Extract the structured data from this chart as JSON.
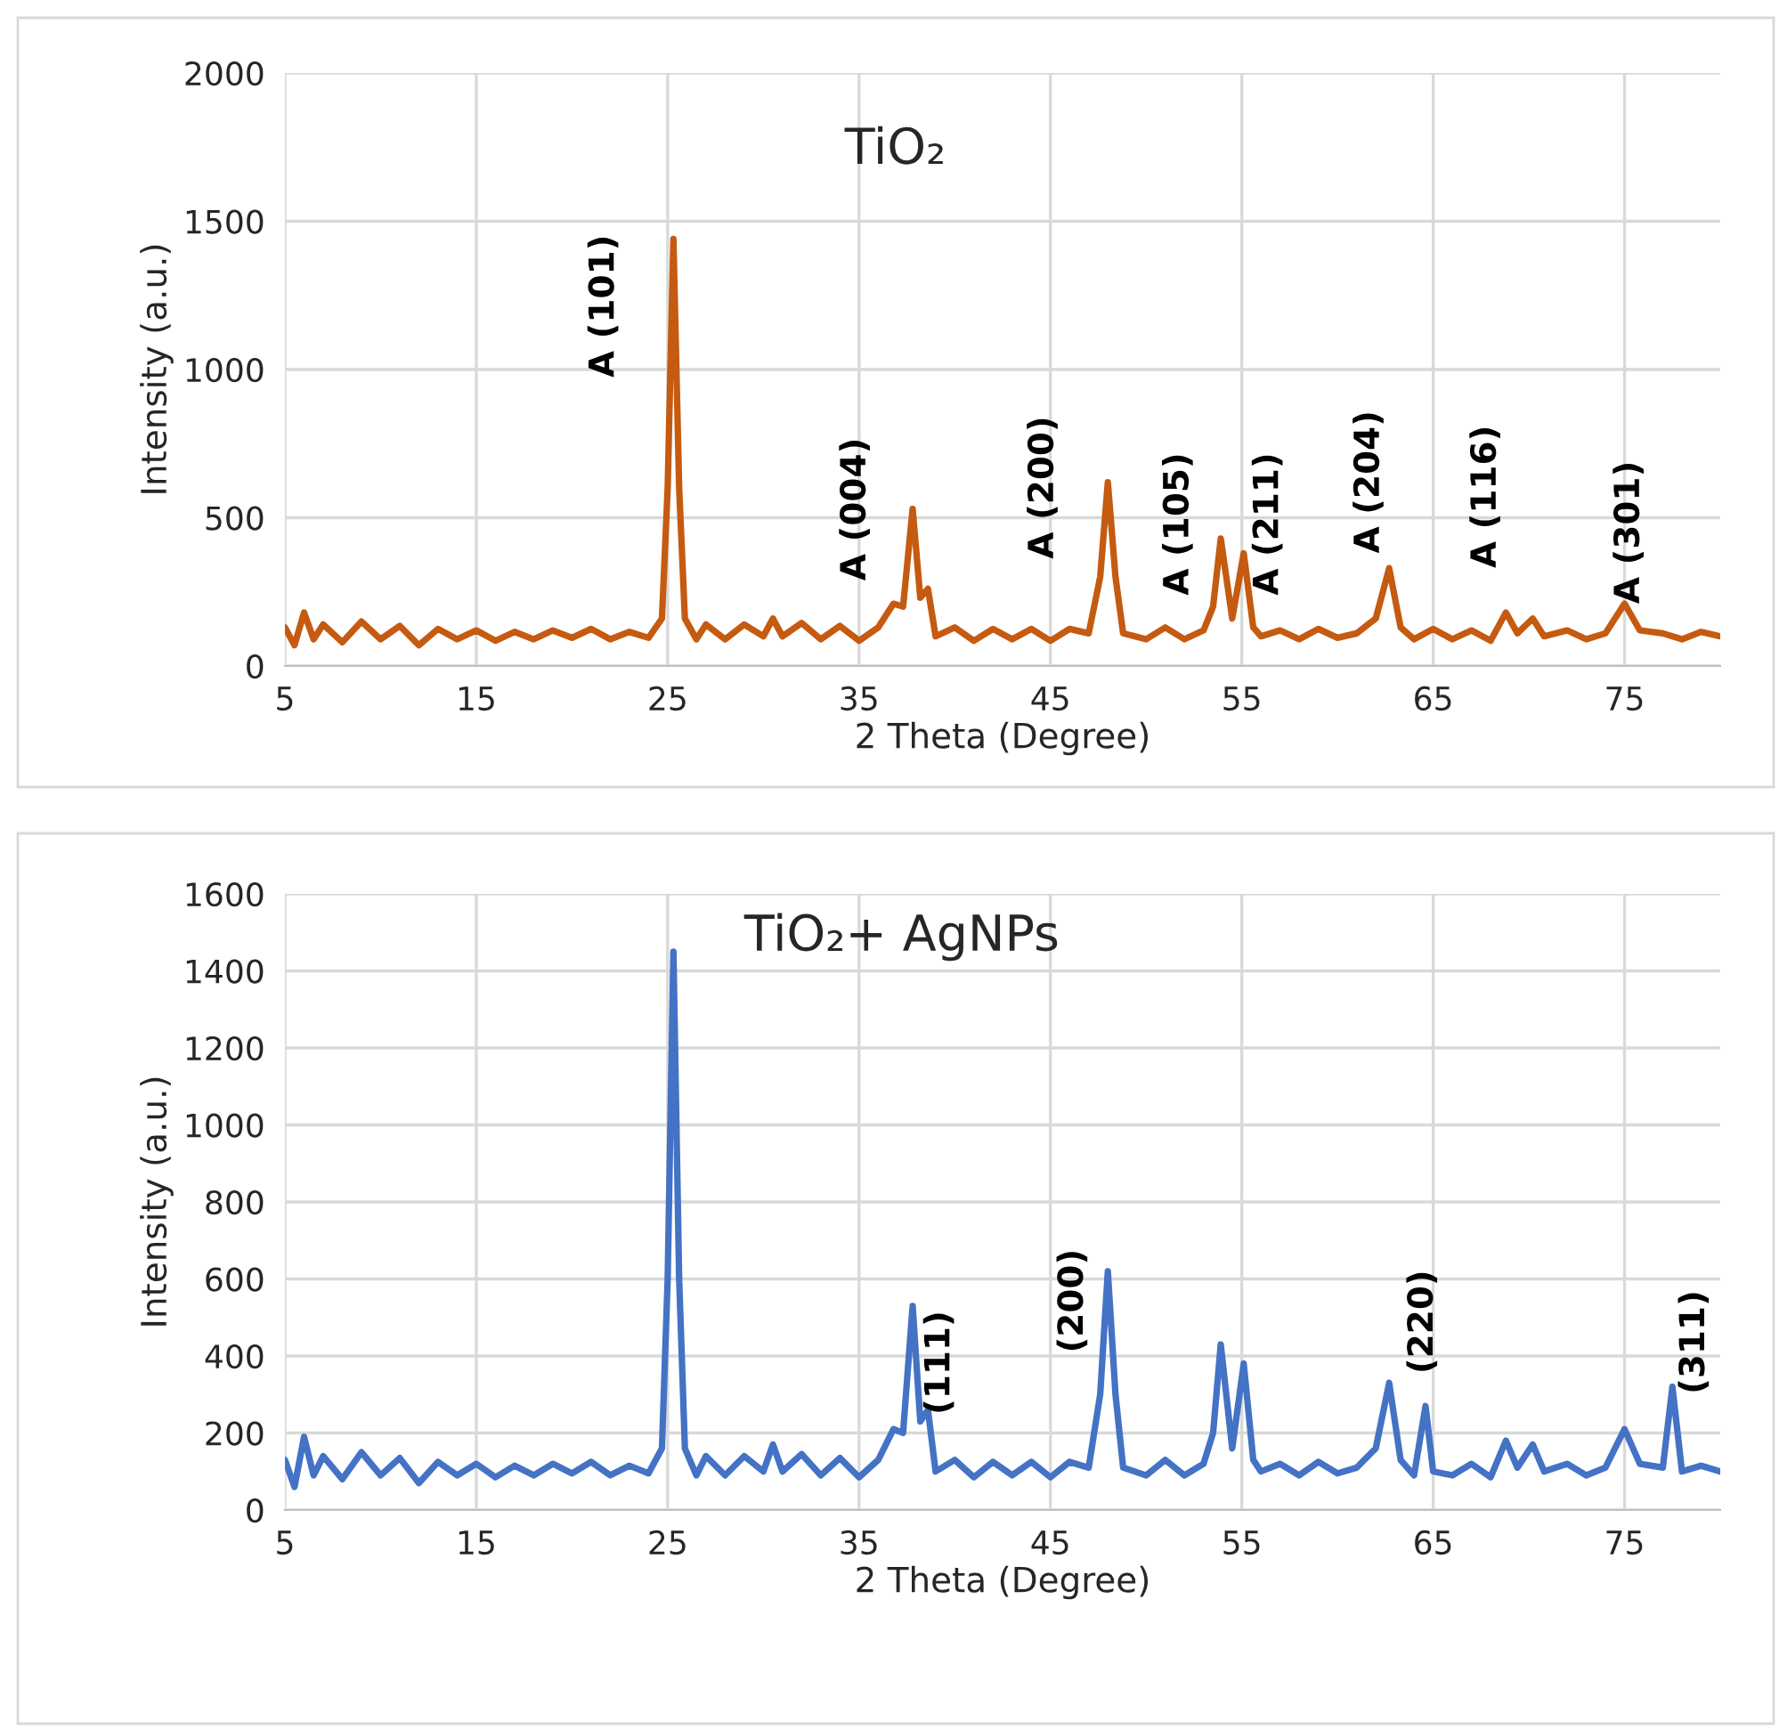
{
  "chart_data": [
    {
      "type": "line",
      "title": "TiO₂",
      "xlabel": "2 Theta (Degree)",
      "ylabel": "Intensity (a.u.)",
      "xlim": [
        5,
        80
      ],
      "xticks": [
        5,
        15,
        25,
        35,
        45,
        55,
        65,
        75
      ],
      "ylim": [
        0,
        2000
      ],
      "yticks": [
        0,
        500,
        1000,
        1500,
        2000
      ],
      "grid": true,
      "series": [
        {
          "color": "#c55a11",
          "x": [
            5,
            5.5,
            6,
            6.5,
            7,
            8,
            9,
            10,
            11,
            12,
            13,
            14,
            15,
            16,
            17,
            18,
            19,
            20,
            21,
            22,
            23,
            24,
            24.7,
            25.0,
            25.3,
            25.6,
            25.9,
            26.5,
            27,
            28,
            29,
            30,
            30.5,
            31,
            32,
            33,
            34,
            35,
            36,
            36.8,
            37.3,
            37.8,
            38.2,
            38.6,
            39,
            40,
            41,
            42,
            43,
            44,
            45,
            46,
            47,
            47.6,
            48.0,
            48.4,
            48.8,
            50,
            51,
            52,
            53,
            53.5,
            53.9,
            54.5,
            55.1,
            55.6,
            56,
            57,
            58,
            59,
            60,
            61,
            62,
            62.7,
            63.3,
            64,
            65,
            66,
            67,
            68,
            68.8,
            69.4,
            70.2,
            70.8,
            72,
            73,
            74,
            75,
            75.8,
            77,
            78,
            79,
            80
          ],
          "values": [
            130,
            70,
            180,
            90,
            140,
            80,
            150,
            90,
            135,
            70,
            125,
            90,
            120,
            85,
            115,
            90,
            120,
            95,
            125,
            90,
            115,
            95,
            160,
            600,
            1440,
            600,
            160,
            90,
            140,
            90,
            140,
            100,
            160,
            100,
            145,
            90,
            135,
            85,
            130,
            210,
            200,
            530,
            230,
            260,
            100,
            130,
            85,
            125,
            90,
            125,
            85,
            125,
            110,
            300,
            620,
            300,
            110,
            90,
            130,
            90,
            120,
            200,
            430,
            160,
            380,
            130,
            100,
            120,
            90,
            125,
            95,
            110,
            160,
            330,
            130,
            90,
            125,
            90,
            120,
            85,
            180,
            110,
            160,
            100,
            120,
            90,
            110,
            210,
            120,
            110,
            90,
            115,
            100
          ]
        }
      ],
      "annotations": [
        {
          "text": "A (101)",
          "x": 25.3,
          "y": 1440
        },
        {
          "text": "A (004)",
          "x": 37.8,
          "y": 530
        },
        {
          "text": "A (200)",
          "x": 48.0,
          "y": 620
        },
        {
          "text": "A (105)",
          "x": 53.9,
          "y": 430
        },
        {
          "text": "A (211)",
          "x": 55.1,
          "y": 380
        },
        {
          "text": "A (204)",
          "x": 62.7,
          "y": 330
        },
        {
          "text": "A (116)",
          "x": 68.8,
          "y": 180
        },
        {
          "text": "A (301)",
          "x": 75.0,
          "y": 210
        }
      ]
    },
    {
      "type": "line",
      "title": "TiO₂+ AgNPs",
      "xlabel": "2 Theta (Degree)",
      "ylabel": "Intensity (a.u.)",
      "xlim": [
        5,
        80
      ],
      "xticks": [
        5,
        15,
        25,
        35,
        45,
        55,
        65,
        75
      ],
      "ylim": [
        0,
        1600
      ],
      "yticks": [
        0,
        200,
        400,
        600,
        800,
        1000,
        1200,
        1400,
        1600
      ],
      "grid": true,
      "series": [
        {
          "color": "#4472c4",
          "x": [
            5,
            5.5,
            6,
            6.5,
            7,
            8,
            9,
            10,
            11,
            12,
            13,
            14,
            15,
            16,
            17,
            18,
            19,
            20,
            21,
            22,
            23,
            24,
            24.7,
            25.0,
            25.3,
            25.6,
            25.9,
            26.5,
            27,
            28,
            29,
            30,
            30.5,
            31,
            32,
            33,
            34,
            35,
            36,
            36.8,
            37.3,
            37.8,
            38.2,
            38.6,
            39,
            40,
            41,
            42,
            43,
            44,
            45,
            46,
            47,
            47.6,
            48.0,
            48.4,
            48.8,
            50,
            51,
            52,
            53,
            53.5,
            53.9,
            54.5,
            55.1,
            55.6,
            56,
            57,
            58,
            59,
            60,
            61,
            62,
            62.7,
            63.3,
            64,
            64.6,
            65,
            66,
            67,
            68,
            68.8,
            69.4,
            70.2,
            70.8,
            72,
            73,
            74,
            75,
            75.8,
            77,
            77.5,
            78,
            79,
            80
          ],
          "values": [
            130,
            60,
            190,
            90,
            140,
            80,
            150,
            90,
            135,
            70,
            125,
            90,
            120,
            85,
            115,
            90,
            120,
            95,
            125,
            90,
            115,
            95,
            160,
            600,
            1450,
            600,
            160,
            90,
            140,
            90,
            140,
            100,
            170,
            100,
            145,
            90,
            135,
            85,
            130,
            210,
            200,
            530,
            230,
            260,
            100,
            130,
            85,
            125,
            90,
            125,
            85,
            125,
            110,
            300,
            620,
            300,
            110,
            90,
            130,
            90,
            120,
            200,
            430,
            160,
            380,
            130,
            100,
            120,
            90,
            125,
            95,
            110,
            160,
            330,
            130,
            90,
            270,
            100,
            90,
            120,
            85,
            180,
            110,
            170,
            100,
            120,
            90,
            110,
            210,
            120,
            110,
            320,
            100,
            115,
            100
          ]
        }
      ],
      "annotations": [
        {
          "text": "(111)",
          "x": 37.8,
          "y": 530
        },
        {
          "text": "(200)",
          "x": 48.0,
          "y": 620
        },
        {
          "text": "(220)",
          "x": 64.6,
          "y": 270
        },
        {
          "text": "(311)",
          "x": 77.5,
          "y": 320
        }
      ]
    }
  ]
}
